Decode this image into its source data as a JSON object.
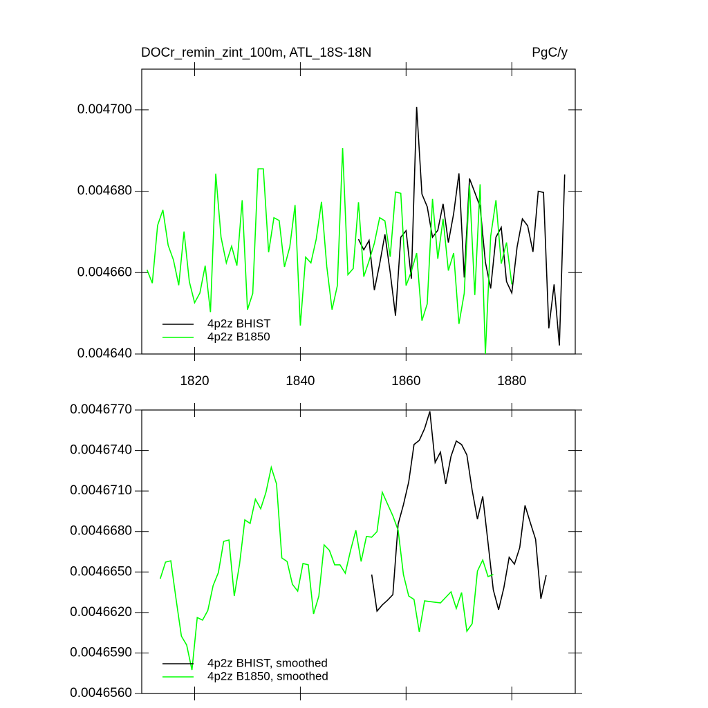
{
  "chart_data": [
    {
      "type": "line",
      "title": "DOCr_remin_zint_100m, ATL_18S-18N",
      "units": "PgC/y",
      "xlim": [
        1810,
        1892
      ],
      "xticks": [
        1820,
        1840,
        1860,
        1880
      ],
      "xtick_labels": true,
      "ylim": [
        0.00464,
        0.00471
      ],
      "yticks": [
        {
          "value": 0.00464,
          "label": "0.004640"
        },
        {
          "value": 0.00466,
          "label": "0.004660"
        },
        {
          "value": 0.00468,
          "label": "0.004680"
        },
        {
          "value": 0.0047,
          "label": "0.004700"
        }
      ],
      "legend": "lower left",
      "grid": false,
      "series": [
        {
          "name": "4p2z BHIST",
          "color": "#000000",
          "x": [
            1851,
            1852,
            1853,
            1854,
            1855,
            1856,
            1857,
            1858,
            1859,
            1860,
            1861,
            1862,
            1863,
            1864,
            1865,
            1866,
            1867,
            1868,
            1869,
            1870,
            1871,
            1872,
            1873,
            1874,
            1875,
            1876,
            1877,
            1878,
            1879,
            1880,
            1881,
            1882,
            1883,
            1884,
            1885,
            1886,
            1887,
            1888,
            1889,
            1890
          ],
          "values": [
            0.0046682,
            0.0046656,
            0.0046679,
            0.0046557,
            0.0046621,
            0.0046694,
            0.00466,
            0.0046494,
            0.0046687,
            0.0046703,
            0.0046585,
            0.0047007,
            0.0046793,
            0.0046762,
            0.0046687,
            0.0046704,
            0.0046769,
            0.0046674,
            0.0046745,
            0.0046844,
            0.0046588,
            0.0046831,
            0.0046797,
            0.0046762,
            0.0046626,
            0.0046561,
            0.0046687,
            0.0046711,
            0.0046578,
            0.004655,
            0.0046663,
            0.0046732,
            0.0046715,
            0.0046651,
            0.00468,
            0.0046797,
            0.0046463,
            0.0046571,
            0.0046421,
            0.0046841
          ]
        },
        {
          "name": "4p2z B1850",
          "color": "#00ff00",
          "x": [
            1811,
            1812,
            1813,
            1814,
            1815,
            1816,
            1817,
            1818,
            1819,
            1820,
            1821,
            1822,
            1823,
            1824,
            1825,
            1826,
            1827,
            1828,
            1829,
            1830,
            1831,
            1832,
            1833,
            1834,
            1835,
            1836,
            1837,
            1838,
            1839,
            1840,
            1841,
            1842,
            1843,
            1844,
            1845,
            1846,
            1847,
            1848,
            1849,
            1850,
            1851,
            1852,
            1853,
            1854,
            1855,
            1856,
            1857,
            1858,
            1859,
            1860,
            1861,
            1862,
            1863,
            1864,
            1865,
            1866,
            1867,
            1868,
            1869,
            1870,
            1871,
            1872,
            1873,
            1874,
            1875,
            1876,
            1877,
            1878,
            1879,
            1880
          ],
          "values": [
            0.0046607,
            0.0046574,
            0.0046716,
            0.0046754,
            0.0046667,
            0.0046631,
            0.0046569,
            0.0046701,
            0.0046578,
            0.0046526,
            0.004655,
            0.0046617,
            0.0046503,
            0.0046843,
            0.0046687,
            0.0046624,
            0.0046665,
            0.0046617,
            0.0046778,
            0.0046509,
            0.0046549,
            0.0046855,
            0.0046855,
            0.004665,
            0.0046735,
            0.0046728,
            0.0046614,
            0.0046663,
            0.0046766,
            0.004647,
            0.0046638,
            0.0046624,
            0.0046682,
            0.0046774,
            0.0046615,
            0.0046509,
            0.0046568,
            0.0046906,
            0.0046595,
            0.004661,
            0.0046773,
            0.004659,
            0.0046629,
            0.0046672,
            0.0046735,
            0.0046727,
            0.0046639,
            0.0046798,
            0.0046795,
            0.0046568,
            0.0046603,
            0.0046648,
            0.0046482,
            0.0046523,
            0.0046781,
            0.0046634,
            0.0046732,
            0.0046605,
            0.0046648,
            0.0046474,
            0.0046549,
            0.0046814,
            0.0046545,
            0.0046817,
            0.00464,
            0.0046689,
            0.0046778,
            0.0046622,
            0.0046674,
            0.0046571
          ]
        }
      ]
    },
    {
      "type": "line",
      "xlim": [
        1810,
        1892
      ],
      "xticks": [
        1820,
        1840,
        1860,
        1880
      ],
      "xtick_labels": false,
      "ylim": [
        0.004656,
        0.004677
      ],
      "yticks": [
        {
          "value": 0.004656,
          "label": "0.0046560"
        },
        {
          "value": 0.004659,
          "label": "0.0046590"
        },
        {
          "value": 0.004662,
          "label": "0.0046620"
        },
        {
          "value": 0.004665,
          "label": "0.0046650"
        },
        {
          "value": 0.004668,
          "label": "0.0046680"
        },
        {
          "value": 0.004671,
          "label": "0.0046710"
        },
        {
          "value": 0.004674,
          "label": "0.0046740"
        },
        {
          "value": 0.004677,
          "label": "0.0046770"
        }
      ],
      "legend": "lower left",
      "grid": false,
      "series": [
        {
          "name": "4p2z BHIST, smoothed",
          "color": "#000000",
          "x": [
            1853.5,
            1854.5,
            1855.5,
            1856.5,
            1857.5,
            1858.5,
            1859.5,
            1860.5,
            1861.5,
            1862.5,
            1863.5,
            1864.5,
            1865.5,
            1866.5,
            1867.5,
            1868.5,
            1869.5,
            1870.5,
            1871.5,
            1872.5,
            1873.5,
            1874.5,
            1875.5,
            1876.5,
            1877.5,
            1878.5,
            1879.5,
            1880.5,
            1881.5,
            1882.5,
            1883.5,
            1884.5,
            1885.5,
            1886.5
          ],
          "values": [
            0.00466481,
            0.0046621,
            0.00466256,
            0.00466291,
            0.00466332,
            0.00466855,
            0.00466998,
            0.00467167,
            0.00467444,
            0.00467475,
            0.00467562,
            0.0046769,
            0.00467311,
            0.00467388,
            0.00467152,
            0.00467357,
            0.0046747,
            0.00467444,
            0.00467367,
            0.00467106,
            0.00466891,
            0.0046706,
            0.00466717,
            0.00466368,
            0.0046622,
            0.00466384,
            0.00466609,
            0.00466558,
            0.00466681,
            0.00466993,
            0.00466865,
            0.00466742,
            0.00466302,
            0.00466476
          ]
        },
        {
          "name": "4p2z B1850, smoothed",
          "color": "#00ff00",
          "x": [
            1813.5,
            1814.5,
            1815.5,
            1816.5,
            1817.5,
            1818.5,
            1819.5,
            1820.5,
            1821.5,
            1822.5,
            1823.5,
            1824.5,
            1825.5,
            1826.5,
            1827.5,
            1828.5,
            1829.5,
            1830.5,
            1831.5,
            1832.5,
            1833.5,
            1834.5,
            1835.5,
            1836.5,
            1837.5,
            1838.5,
            1839.5,
            1840.5,
            1841.5,
            1842.5,
            1843.5,
            1844.5,
            1845.5,
            1846.5,
            1847.5,
            1848.5,
            1849.5,
            1850.5,
            1851.5,
            1852.5,
            1853.5,
            1854.5,
            1855.5,
            1856.5,
            1857.5,
            1858.5,
            1859.5,
            1860.5,
            1861.5,
            1862.5,
            1863.5,
            1864.5,
            1865.5,
            1866.5,
            1867.5,
            1868.5,
            1869.5,
            1870.5,
            1871.5,
            1872.5,
            1873.5,
            1874.5,
            1875.5,
            1876.5
          ],
          "values": [
            0.0046645,
            0.00466573,
            0.00466583,
            0.00466297,
            0.00466025,
            0.00465959,
            0.00465774,
            0.00466163,
            0.00466143,
            0.00466215,
            0.00466399,
            0.00466496,
            0.00466727,
            0.00466737,
            0.00466322,
            0.00466558,
            0.00466886,
            0.0046686,
            0.00467039,
            0.00466968,
            0.00467091,
            0.00467275,
            0.00467152,
            0.00466604,
            0.00466578,
            0.00466409,
            0.00466358,
            0.00466563,
            0.00466553,
            0.00466189,
            0.00466322,
            0.00466701,
            0.0046666,
            0.00466553,
            0.00466553,
            0.00466491,
            0.0046666,
            0.00466809,
            0.00466578,
            0.00466763,
            0.00466758,
            0.00466799,
            0.00467091,
            0.00467003,
            0.00466916,
            0.00466809,
            0.00466481,
            0.00466322,
            0.00466297,
            0.00466056,
            0.00466286,
            0.00466281,
            0.00466276,
            0.00466271,
            0.00466312,
            0.00466353,
            0.0046623,
            0.00466348,
            0.00466061,
            0.00466117,
            0.00466507,
            0.00466589,
            0.00466466,
            0.00466481
          ]
        }
      ]
    }
  ]
}
